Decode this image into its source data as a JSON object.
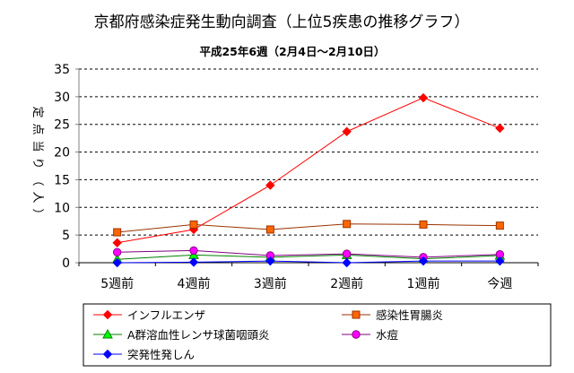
{
  "chart_data": {
    "type": "line",
    "title": "京都府感染症発生動向調査（上位5疾患の推移グラフ）",
    "subtitle": "平成25年6週（2月4日～2月10日）",
    "ylabel": "定点当り（人）",
    "xlabel": "",
    "categories": [
      "5週前",
      "4週前",
      "3週前",
      "2週前",
      "1週前",
      "今週"
    ],
    "ylim": [
      0,
      35
    ],
    "yticks": [
      0,
      5,
      10,
      15,
      20,
      25,
      30,
      35
    ],
    "grid": "horizontal-dashed",
    "legend_position": "bottom",
    "series": [
      {
        "name": "インフルエンザ",
        "color": "#ff0000",
        "marker": "diamond",
        "values": [
          3.6,
          6.0,
          14.0,
          23.7,
          29.8,
          24.3
        ]
      },
      {
        "name": "感染性胃腸炎",
        "color": "#993300",
        "marker_fill": "#ff6600",
        "marker": "square",
        "values": [
          5.5,
          6.9,
          6.0,
          7.0,
          6.9,
          6.7
        ]
      },
      {
        "name": "A群溶血性レンサ球菌咽頭炎",
        "color": "#008000",
        "marker_fill": "#00ff00",
        "marker": "triangle",
        "values": [
          0.6,
          1.4,
          1.0,
          1.4,
          0.7,
          1.3
        ]
      },
      {
        "name": "水痘",
        "color": "#800080",
        "marker_fill": "#ff00ff",
        "marker": "circle",
        "values": [
          1.9,
          2.2,
          1.3,
          1.6,
          1.0,
          1.5
        ]
      },
      {
        "name": "突発性発しん",
        "color": "#0000ff",
        "marker": "diamond",
        "values": [
          0.0,
          0.1,
          0.3,
          0.0,
          0.3,
          0.3
        ]
      }
    ]
  }
}
